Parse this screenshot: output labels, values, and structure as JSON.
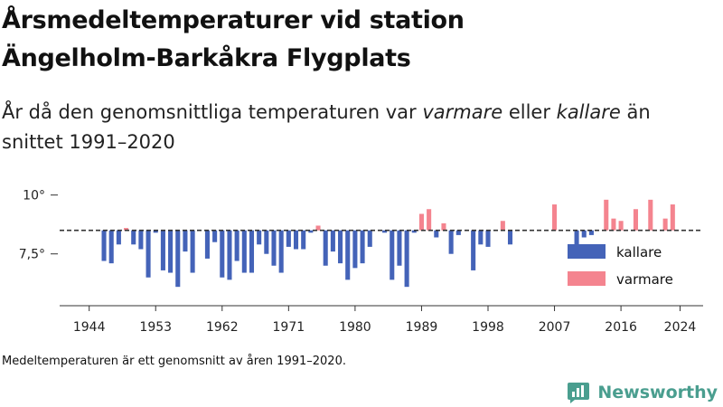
{
  "header": {
    "title_line1": "Årsmedeltemperaturer vid station",
    "title_line2": "Ängelholm-Barkåkra Flygplats",
    "subtitle_a": "År då den genomsnittliga temperaturen var ",
    "subtitle_b": "varmare",
    "subtitle_c": " eller ",
    "subtitle_d": "kallare",
    "subtitle_e": " än snittet 1991–2020"
  },
  "footer": {
    "note": "Medeltemperaturen är ett genomsnitt av åren 1991–2020.",
    "brand": "Newsworthy"
  },
  "colors": {
    "kallare": "#4463b8",
    "varmare": "#f4848f",
    "axis": "#333333",
    "baseline": "#333333"
  },
  "chart_data": {
    "type": "bar",
    "baseline": 8.5,
    "ylim": [
      5.3,
      10.6
    ],
    "xlim": [
      1940,
      2027
    ],
    "y_ticks": [
      {
        "value": 10,
        "label": "10°"
      },
      {
        "value": 7.5,
        "label": "7,5°"
      }
    ],
    "x_ticks": [
      1944,
      1953,
      1962,
      1971,
      1980,
      1989,
      1998,
      2007,
      2016,
      2024
    ],
    "legend": [
      {
        "key": "kallare",
        "label": "kallare"
      },
      {
        "key": "varmare",
        "label": "varmare"
      }
    ],
    "x": [
      1946,
      1947,
      1948,
      1949,
      1950,
      1951,
      1952,
      1953,
      1954,
      1955,
      1956,
      1957,
      1958,
      1959,
      1960,
      1961,
      1962,
      1963,
      1964,
      1965,
      1966,
      1967,
      1968,
      1969,
      1970,
      1971,
      1972,
      1973,
      1974,
      1975,
      1976,
      1977,
      1978,
      1979,
      1980,
      1981,
      1982,
      1983,
      1984,
      1985,
      1986,
      1987,
      1988,
      1989,
      1990,
      1991,
      1992,
      1993,
      1994,
      1995,
      1996,
      1997,
      1998,
      1999,
      2000,
      2001,
      2002,
      2003,
      2004,
      2005,
      2006,
      2007,
      2008,
      2009,
      2010,
      2011,
      2012,
      2013,
      2014,
      2015,
      2016,
      2017,
      2018,
      2019,
      2020,
      2021,
      2022,
      2023,
      2024,
      2025
    ],
    "values": [
      7.2,
      7.1,
      7.9,
      8.6,
      7.9,
      7.7,
      6.5,
      8.4,
      6.8,
      6.7,
      6.1,
      7.6,
      6.7,
      8.5,
      7.3,
      8.0,
      6.5,
      6.4,
      7.2,
      6.7,
      6.7,
      7.9,
      7.5,
      7.0,
      6.7,
      7.8,
      7.7,
      7.7,
      8.4,
      8.7,
      7.0,
      7.6,
      7.1,
      6.4,
      6.9,
      7.1,
      7.8,
      8.5,
      8.4,
      6.4,
      7.0,
      6.1,
      8.4,
      9.2,
      9.4,
      8.2,
      8.8,
      7.5,
      8.3,
      8.5,
      6.8,
      7.9,
      7.8,
      8.5,
      8.9,
      7.9,
      8.5,
      8.5,
      8.5,
      8.5,
      8.5,
      9.6,
      8.5,
      8.5,
      7.9,
      8.2,
      8.3,
      8.5,
      9.8,
      9.0,
      8.9,
      8.5,
      9.4,
      8.5,
      9.8,
      8.5,
      9.0,
      9.6,
      8.5,
      8.5
    ]
  }
}
